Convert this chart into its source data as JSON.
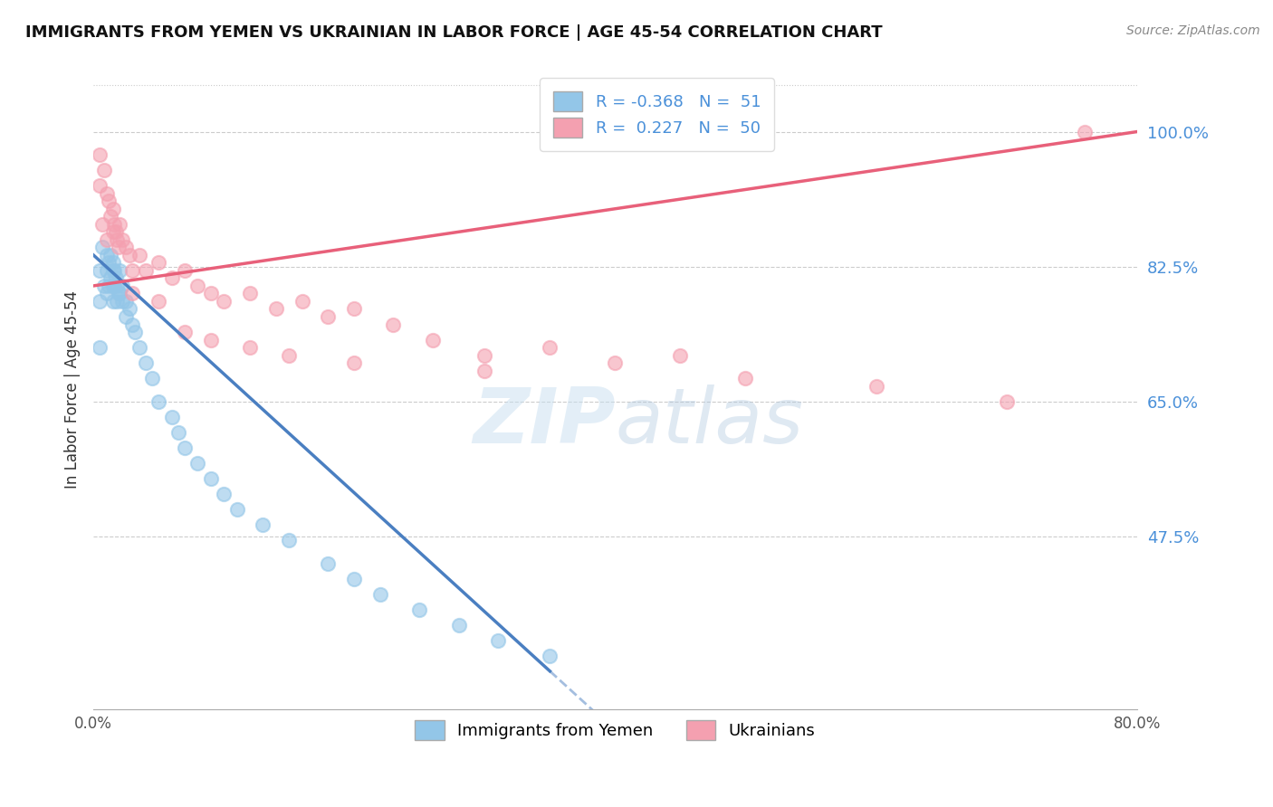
{
  "title": "IMMIGRANTS FROM YEMEN VS UKRAINIAN IN LABOR FORCE | AGE 45-54 CORRELATION CHART",
  "source": "Source: ZipAtlas.com",
  "ylabel": "In Labor Force | Age 45-54",
  "xlim": [
    0.0,
    0.8
  ],
  "ylim": [
    0.25,
    1.08
  ],
  "r_yemen": -0.368,
  "n_yemen": 51,
  "r_ukraine": 0.227,
  "n_ukraine": 50,
  "color_yemen": "#93C6E8",
  "color_ukraine": "#F4A0B0",
  "line_yemen": "#4A7FC1",
  "line_ukraine": "#E8607A",
  "legend_label_yemen": "Immigrants from Yemen",
  "legend_label_ukraine": "Ukrainians",
  "ytick_vals": [
    0.475,
    0.65,
    0.825,
    1.0
  ],
  "ytick_labels": [
    "47.5%",
    "65.0%",
    "82.5%",
    "100.0%"
  ],
  "xtick_vals": [
    0.0,
    0.8
  ],
  "xtick_labels": [
    "0.0%",
    "80.0%"
  ],
  "yemen_x": [
    0.005,
    0.005,
    0.005,
    0.007,
    0.008,
    0.01,
    0.01,
    0.01,
    0.012,
    0.012,
    0.013,
    0.013,
    0.015,
    0.015,
    0.015,
    0.015,
    0.016,
    0.016,
    0.017,
    0.018,
    0.018,
    0.019,
    0.02,
    0.02,
    0.022,
    0.022,
    0.025,
    0.025,
    0.028,
    0.03,
    0.032,
    0.035,
    0.04,
    0.045,
    0.05,
    0.06,
    0.065,
    0.07,
    0.08,
    0.09,
    0.1,
    0.11,
    0.13,
    0.15,
    0.18,
    0.2,
    0.22,
    0.25,
    0.28,
    0.31,
    0.35
  ],
  "yemen_y": [
    0.82,
    0.78,
    0.72,
    0.85,
    0.8,
    0.84,
    0.82,
    0.79,
    0.83,
    0.8,
    0.84,
    0.81,
    0.83,
    0.82,
    0.8,
    0.78,
    0.82,
    0.8,
    0.81,
    0.8,
    0.78,
    0.79,
    0.82,
    0.79,
    0.8,
    0.78,
    0.78,
    0.76,
    0.77,
    0.75,
    0.74,
    0.72,
    0.7,
    0.68,
    0.65,
    0.63,
    0.61,
    0.59,
    0.57,
    0.55,
    0.53,
    0.51,
    0.49,
    0.47,
    0.44,
    0.42,
    0.4,
    0.38,
    0.36,
    0.34,
    0.32
  ],
  "ukraine_x": [
    0.005,
    0.005,
    0.007,
    0.008,
    0.01,
    0.01,
    0.012,
    0.013,
    0.015,
    0.015,
    0.016,
    0.017,
    0.018,
    0.019,
    0.02,
    0.022,
    0.025,
    0.028,
    0.03,
    0.035,
    0.04,
    0.05,
    0.06,
    0.07,
    0.08,
    0.09,
    0.1,
    0.12,
    0.14,
    0.16,
    0.18,
    0.2,
    0.23,
    0.26,
    0.3,
    0.35,
    0.4,
    0.45,
    0.5,
    0.6,
    0.7,
    0.76,
    0.03,
    0.05,
    0.07,
    0.09,
    0.12,
    0.15,
    0.2,
    0.3
  ],
  "ukraine_y": [
    0.97,
    0.93,
    0.88,
    0.95,
    0.92,
    0.86,
    0.91,
    0.89,
    0.9,
    0.87,
    0.88,
    0.87,
    0.86,
    0.85,
    0.88,
    0.86,
    0.85,
    0.84,
    0.82,
    0.84,
    0.82,
    0.83,
    0.81,
    0.82,
    0.8,
    0.79,
    0.78,
    0.79,
    0.77,
    0.78,
    0.76,
    0.77,
    0.75,
    0.73,
    0.71,
    0.72,
    0.7,
    0.71,
    0.68,
    0.67,
    0.65,
    1.0,
    0.79,
    0.78,
    0.74,
    0.73,
    0.72,
    0.71,
    0.7,
    0.69
  ]
}
